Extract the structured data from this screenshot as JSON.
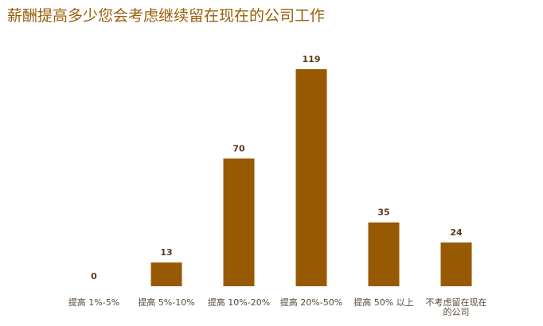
{
  "chart_data": {
    "type": "bar",
    "title": "薪酬提高多少您会考虑继续留在现在的公司工作",
    "categories": [
      [
        "提高 1%-5%"
      ],
      [
        "提高 5%-10%"
      ],
      [
        "提高 10%-20%"
      ],
      [
        "提高 20%-50%"
      ],
      [
        "提高 50% 以上"
      ],
      [
        "不考虑留在现在",
        "的公司"
      ]
    ],
    "values": [
      0,
      13,
      70,
      119,
      35,
      24
    ],
    "ylim": [
      0,
      119
    ],
    "grid": false,
    "legend": "none",
    "colors": {
      "bar": "#975a03",
      "title": "#9a5d0a",
      "value_label": "#5a3b1a",
      "tick_label": "#5a4a3a"
    }
  }
}
